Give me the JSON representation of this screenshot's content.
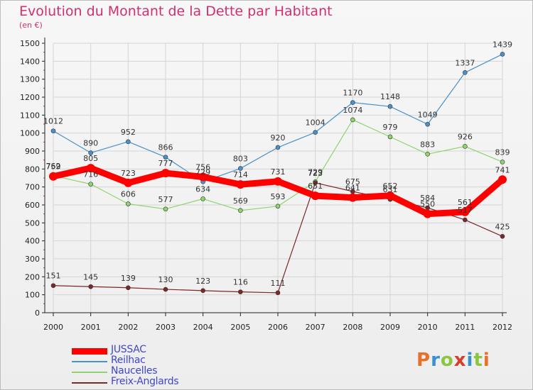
{
  "title": "Evolution du Montant de la Dette par Habitant",
  "unit": "(en €)",
  "logo": "Proxiti",
  "colors": {
    "title": "#d0306f",
    "axis": "#222222",
    "grid": "#d4d4d4",
    "logo": [
      "#e8702a",
      "#3a8fd0",
      "#8cc63f",
      "#d53f2c",
      "#3a8fd0",
      "#8cc63f",
      "#e8702a"
    ]
  },
  "chart_data": {
    "type": "line",
    "x": [
      2000,
      2001,
      2002,
      2003,
      2004,
      2005,
      2006,
      2007,
      2008,
      2009,
      2010,
      2011,
      2012
    ],
    "ylim": [
      0,
      1500
    ],
    "yticks": [
      0,
      100,
      200,
      300,
      400,
      500,
      600,
      700,
      800,
      900,
      1000,
      1100,
      1200,
      1300,
      1400,
      1500
    ],
    "grid": true,
    "legend_position": "bottom-left",
    "series": [
      {
        "name": "JUSSAC",
        "color": "#ff0000",
        "legend_color": "#3f47cc",
        "width": 9,
        "values": [
          759,
          805,
          723,
          777,
          756,
          714,
          731,
          651,
          641,
          652,
          550,
          561,
          741
        ]
      },
      {
        "name": "Reilhac",
        "color": "#4a90c9",
        "legend_color": "#3f47cc",
        "width": 1.2,
        "values": [
          1012,
          890,
          952,
          866,
          729,
          803,
          920,
          1004,
          1170,
          1148,
          1049,
          1337,
          1439
        ]
      },
      {
        "name": "Naucelles",
        "color": "#8fd46f",
        "legend_color": "#3f47cc",
        "width": 1.2,
        "values": [
          762,
          716,
          606,
          577,
          634,
          569,
          593,
          729,
          1074,
          979,
          883,
          926,
          839
        ]
      },
      {
        "name": "Freix-Anglards",
        "color": "#7a2828",
        "legend_color": "#3f47cc",
        "width": 1.2,
        "values": [
          151,
          145,
          139,
          130,
          123,
          116,
          111,
          723,
          675,
          631,
          584,
          517,
          425
        ]
      }
    ]
  }
}
